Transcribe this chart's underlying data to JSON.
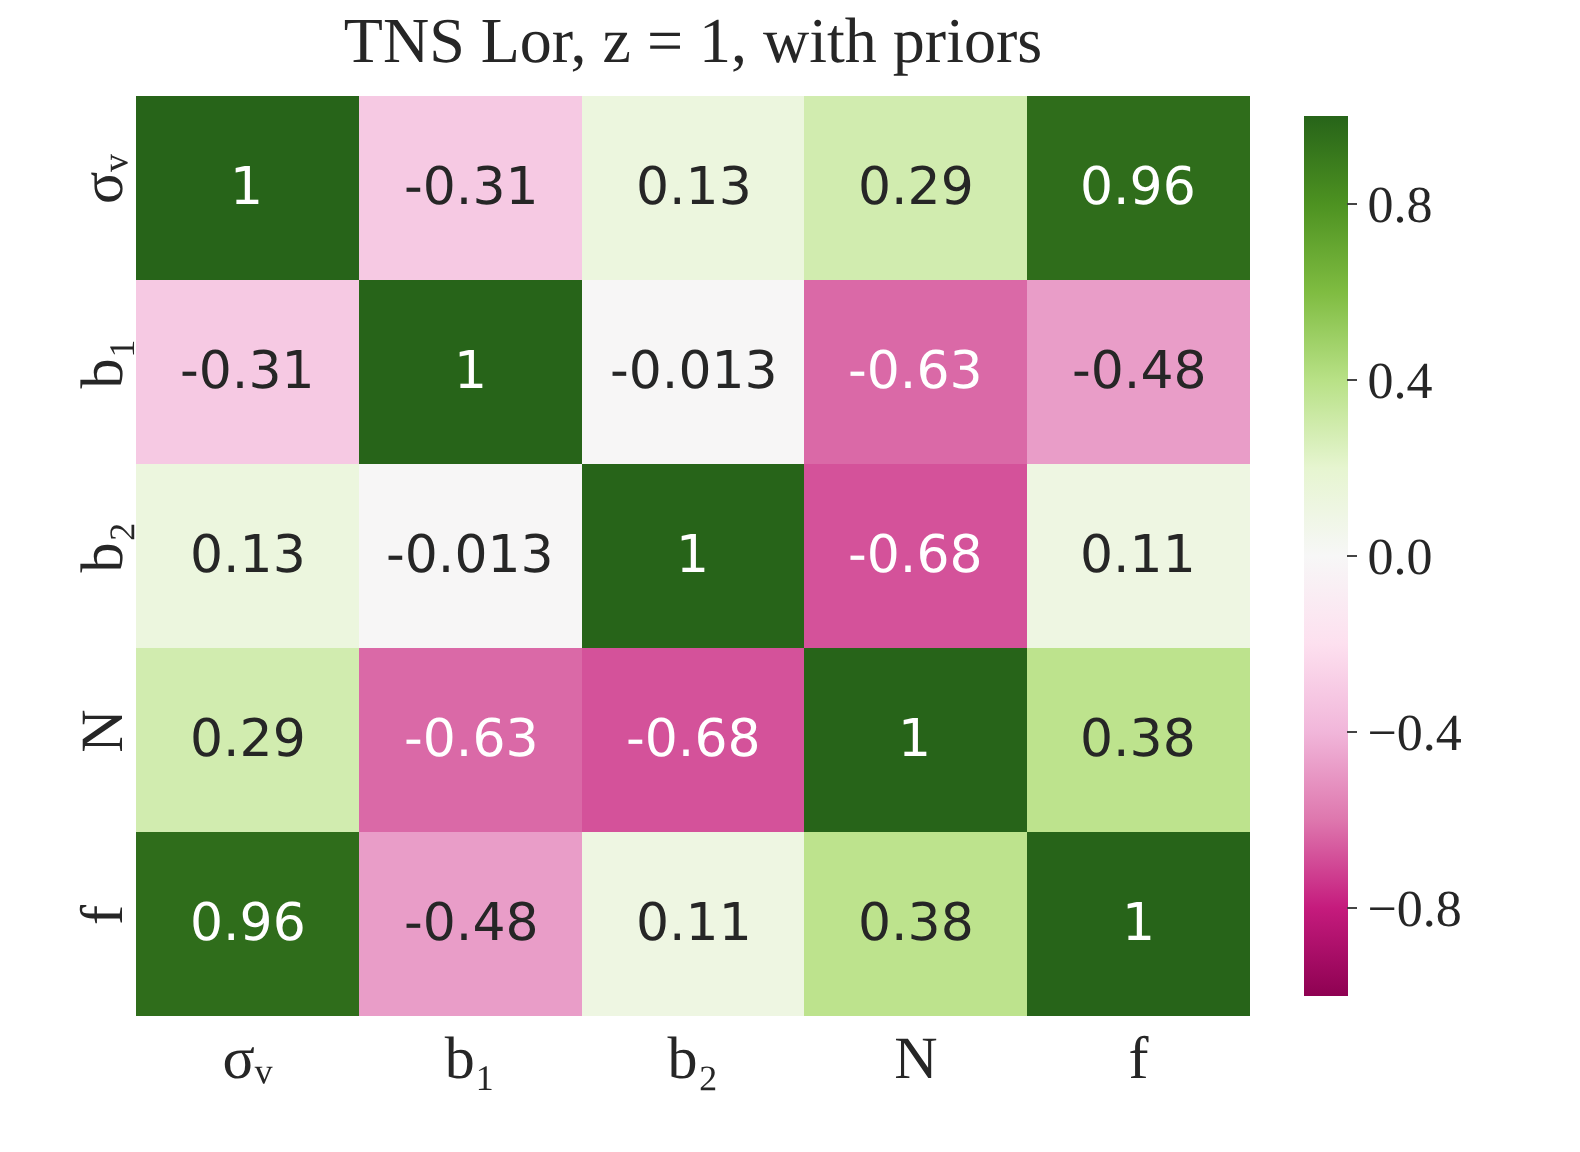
{
  "chart_data": {
    "type": "heatmap",
    "title": "TNS Lor, z = 1, with priors",
    "categories": [
      "σᵥ",
      "b₁",
      "b₂",
      "N",
      "f"
    ],
    "y_categories": [
      "σᵥ",
      "b₁",
      "b₂",
      "N",
      "f"
    ],
    "cells": [
      [
        1,
        -0.31,
        0.13,
        0.29,
        0.96
      ],
      [
        -0.31,
        1,
        -0.013,
        -0.63,
        -0.48
      ],
      [
        0.13,
        -0.013,
        1,
        -0.68,
        0.11
      ],
      [
        0.29,
        -0.63,
        -0.68,
        1,
        0.38
      ],
      [
        0.96,
        -0.48,
        0.11,
        0.38,
        1
      ]
    ],
    "data_labels": true,
    "clim": [
      -1,
      1
    ],
    "cticks": [
      {
        "value": 0.8,
        "label": "0.8"
      },
      {
        "value": 0.4,
        "label": "0.4"
      },
      {
        "value": 0.0,
        "label": "0.0"
      },
      {
        "value": -0.4,
        "label": "−0.4"
      },
      {
        "value": -0.8,
        "label": "−0.8"
      }
    ]
  }
}
